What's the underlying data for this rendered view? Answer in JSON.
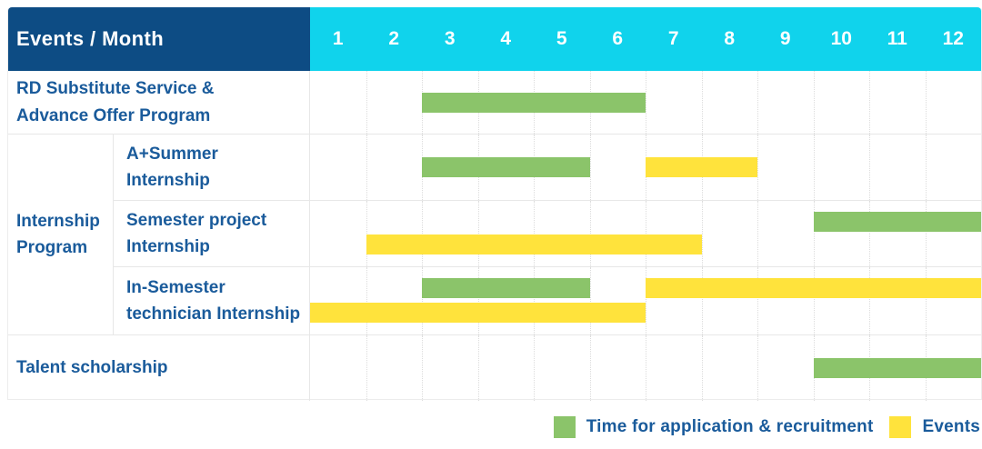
{
  "colors": {
    "navy": "#0d4c84",
    "cyan": "#10d3ec",
    "green": "#8bc46a",
    "yellow": "#ffe33c",
    "label_blue": "#1a5b9b"
  },
  "header": {
    "title": "Events / Month",
    "months": [
      "1",
      "2",
      "3",
      "4",
      "5",
      "6",
      "7",
      "8",
      "9",
      "10",
      "11",
      "12"
    ]
  },
  "group": {
    "label": "Internship\nProgram"
  },
  "rows": [
    {
      "label": "RD Substitute Service &\nAdvance Offer Program",
      "bars": [
        {
          "color": "green",
          "start": 3,
          "end": 6,
          "lane": "center"
        }
      ]
    },
    {
      "label": "A+Summer\nInternship",
      "bars": [
        {
          "color": "green",
          "start": 3,
          "end": 5,
          "lane": "center"
        },
        {
          "color": "yellow",
          "start": 7,
          "end": 8,
          "lane": "center"
        }
      ]
    },
    {
      "label": "Semester project\nInternship",
      "bars": [
        {
          "color": "green",
          "start": 10,
          "end": 12,
          "lane": "top"
        },
        {
          "color": "yellow",
          "start": 2,
          "end": 7,
          "lane": "bottom"
        }
      ]
    },
    {
      "label": "In-Semester\ntechnician Internship",
      "bars": [
        {
          "color": "green",
          "start": 3,
          "end": 5,
          "lane": "top"
        },
        {
          "color": "yellow",
          "start": 7,
          "end": 12,
          "lane": "top"
        },
        {
          "color": "yellow",
          "start": 1,
          "end": 6,
          "lane": "bottom"
        }
      ]
    },
    {
      "label": "Talent scholarship",
      "bars": [
        {
          "color": "green",
          "start": 10,
          "end": 12,
          "lane": "center"
        }
      ]
    }
  ],
  "legend": [
    {
      "color": "green",
      "label": "Time for application & recruitment"
    },
    {
      "color": "yellow",
      "label": "Events"
    }
  ],
  "chart_data": {
    "type": "bar",
    "subtype": "gantt-timeline",
    "title": "Events / Month",
    "xlabel": "Month",
    "x_ticks": [
      1,
      2,
      3,
      4,
      5,
      6,
      7,
      8,
      9,
      10,
      11,
      12
    ],
    "xlim": [
      1,
      12
    ],
    "grid": "dotted vertical month separators",
    "legend_position": "bottom-right",
    "series_meaning": {
      "green": "Time for application & recruitment",
      "yellow": "Events"
    },
    "rows": [
      {
        "event": "RD Substitute Service & Advance Offer Program",
        "segments": [
          {
            "kind": "Time for application & recruitment",
            "start_month": 3,
            "end_month": 6
          }
        ]
      },
      {
        "event": "Internship Program – A+Summer Internship",
        "segments": [
          {
            "kind": "Time for application & recruitment",
            "start_month": 3,
            "end_month": 5
          },
          {
            "kind": "Events",
            "start_month": 7,
            "end_month": 8
          }
        ]
      },
      {
        "event": "Internship Program – Semester project Internship",
        "segments": [
          {
            "kind": "Time for application & recruitment",
            "start_month": 10,
            "end_month": 12
          },
          {
            "kind": "Events",
            "start_month": 2,
            "end_month": 7
          }
        ]
      },
      {
        "event": "Internship Program – In-Semester technician Internship",
        "segments": [
          {
            "kind": "Time for application & recruitment",
            "start_month": 3,
            "end_month": 5
          },
          {
            "kind": "Events",
            "start_month": 1,
            "end_month": 6
          },
          {
            "kind": "Events",
            "start_month": 7,
            "end_month": 12
          }
        ]
      },
      {
        "event": "Talent scholarship",
        "segments": [
          {
            "kind": "Time for application & recruitment",
            "start_month": 10,
            "end_month": 12
          }
        ]
      }
    ]
  }
}
